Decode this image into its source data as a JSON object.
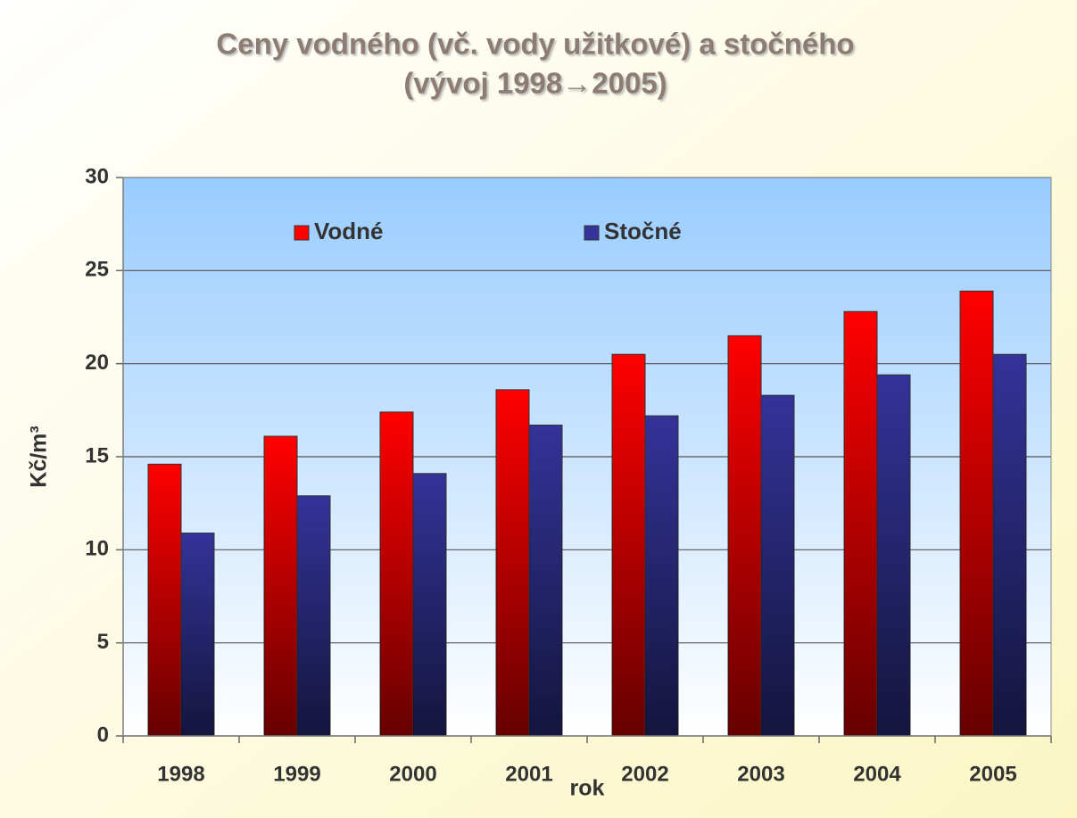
{
  "chart_data": {
    "type": "bar",
    "title": [
      "Ceny vodného (vč. vody užitkové) a stočného",
      "(vývoj 1998→2005)"
    ],
    "x_label": "rok",
    "y_label": "Kč/m³",
    "categories": [
      "1998",
      "1999",
      "2000",
      "2001",
      "2002",
      "2003",
      "2004",
      "2005"
    ],
    "series": [
      {
        "name": "Vodné",
        "color": "#ff0000",
        "values": [
          14.6,
          16.1,
          17.4,
          18.6,
          20.5,
          21.5,
          22.8,
          23.9
        ]
      },
      {
        "name": "Stočné",
        "color": "#333399",
        "values": [
          10.9,
          12.9,
          14.1,
          16.7,
          17.2,
          18.3,
          19.4,
          20.5
        ]
      }
    ],
    "ylim": [
      0,
      30
    ],
    "yticks": [
      0,
      5,
      10,
      15,
      20,
      25,
      30
    ],
    "grid": true,
    "legend": "top"
  }
}
